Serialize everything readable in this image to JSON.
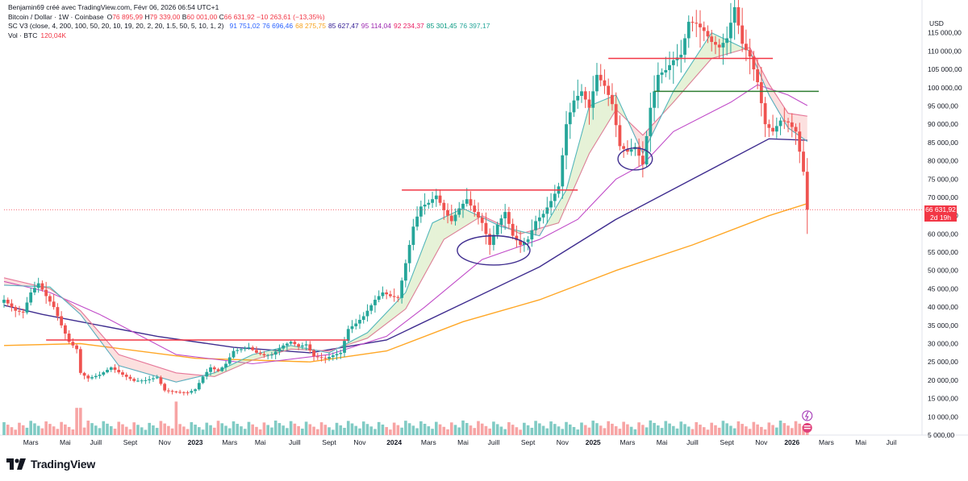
{
  "header": {
    "author_line": "Benjamin69 créé avec TradingView.com, Févr 06, 2026 06:54 UTC+1",
    "symbol_line": "Bitcoin / Dollar · 1W · Coinbase",
    "ohlc": {
      "open_label": "O",
      "open": "76 895,99",
      "high_label": "H",
      "high": "79 339,00",
      "low_label": "B",
      "low": "60 001,00",
      "close_label": "C",
      "close": "66 631,92",
      "change": "−10 263,61 (−13,35%)"
    },
    "indicator_line": "SC V3 (close, 4, 200, 100, 50, 20, 10, 19, 20, 2, 20, 1.5, 50, 5, 10, 1, 2)",
    "indicator_values": [
      {
        "value": "91 751,02",
        "color": "#2962ff"
      },
      {
        "value": "76 696,46",
        "color": "#2962ff"
      },
      {
        "value": "68 275,75",
        "color": "#f7a21b"
      },
      {
        "value": "85 627,47",
        "color": "#311b92"
      },
      {
        "value": "95 114,04",
        "color": "#9c27b0"
      },
      {
        "value": "92 234,37",
        "color": "#e91e63"
      },
      {
        "value": "85 301,45",
        "color": "#089981"
      },
      {
        "value": "76 397,17",
        "color": "#26a69a"
      }
    ],
    "volume_line": "Vol · BTC",
    "volume_value": "120,04K"
  },
  "currency": "USD",
  "price_tag": {
    "price": "66 631,92",
    "countdown": "2d 19h"
  },
  "brand": {
    "name": "TradingView"
  },
  "colors": {
    "up": "#26a69a",
    "down": "#ef5350",
    "vol_up": "#80cbc4",
    "vol_down": "#f7a4a4",
    "ma200": "#ffa726",
    "ma100": "#3f2d8f",
    "ma50": "#c04ac8",
    "ma20": "#e57aa0",
    "ma10": "#4db6c8",
    "resistance": "#f23645",
    "support_green": "#2e7d32",
    "circle": "#3f2d8f"
  },
  "chart_data": {
    "type": "candlestick",
    "title": "Bitcoin / Dollar · 1W · Coinbase",
    "ylabel": "USD",
    "ylim": [
      5000,
      120000
    ],
    "y_ticks": [
      {
        "value": 115000,
        "label": "115 000,00"
      },
      {
        "value": 110000,
        "label": "110 000,00"
      },
      {
        "value": 105000,
        "label": "105 000,00"
      },
      {
        "value": 100000,
        "label": "100 000,00"
      },
      {
        "value": 95000,
        "label": "95 000,00"
      },
      {
        "value": 90000,
        "label": "90 000,00"
      },
      {
        "value": 85000,
        "label": "85 000,00"
      },
      {
        "value": 80000,
        "label": "80 000,00"
      },
      {
        "value": 75000,
        "label": "75 000,00"
      },
      {
        "value": 70000,
        "label": "70 000,00"
      },
      {
        "value": 65000,
        "label": "65 000,00"
      },
      {
        "value": 60000,
        "label": "60 000,00"
      },
      {
        "value": 55000,
        "label": "55 000,00"
      },
      {
        "value": 50000,
        "label": "50 000,00"
      },
      {
        "value": 45000,
        "label": "45 000,00"
      },
      {
        "value": 40000,
        "label": "40 000,00"
      },
      {
        "value": 35000,
        "label": "35 000,00"
      },
      {
        "value": 30000,
        "label": "30 000,00"
      },
      {
        "value": 25000,
        "label": "25 000,00"
      },
      {
        "value": 20000,
        "label": "20 000,00"
      },
      {
        "value": 15000,
        "label": "15 000,00"
      },
      {
        "value": 10000,
        "label": "10 000,00"
      },
      {
        "value": 5000,
        "label": "5 000,00"
      }
    ],
    "x_range_weeks": [
      0,
      240
    ],
    "x_ticks": [
      {
        "week": 7,
        "label": "Mars",
        "bold": false
      },
      {
        "week": 16,
        "label": "Mai",
        "bold": false
      },
      {
        "week": 24,
        "label": "Juill",
        "bold": false
      },
      {
        "week": 33,
        "label": "Sept",
        "bold": false
      },
      {
        "week": 42,
        "label": "Nov",
        "bold": false
      },
      {
        "week": 50,
        "label": "2023",
        "bold": true
      },
      {
        "week": 59,
        "label": "Mars",
        "bold": false
      },
      {
        "week": 67,
        "label": "Mai",
        "bold": false
      },
      {
        "week": 76,
        "label": "Juill",
        "bold": false
      },
      {
        "week": 85,
        "label": "Sept",
        "bold": false
      },
      {
        "week": 93,
        "label": "Nov",
        "bold": false
      },
      {
        "week": 102,
        "label": "2024",
        "bold": true
      },
      {
        "week": 111,
        "label": "Mars",
        "bold": false
      },
      {
        "week": 120,
        "label": "Mai",
        "bold": false
      },
      {
        "week": 128,
        "label": "Juill",
        "bold": false
      },
      {
        "week": 137,
        "label": "Sept",
        "bold": false
      },
      {
        "week": 146,
        "label": "Nov",
        "bold": false
      },
      {
        "week": 154,
        "label": "2025",
        "bold": true
      },
      {
        "week": 163,
        "label": "Mars",
        "bold": false
      },
      {
        "week": 172,
        "label": "Mai",
        "bold": false
      },
      {
        "week": 180,
        "label": "Juill",
        "bold": false
      },
      {
        "week": 189,
        "label": "Sept",
        "bold": false
      },
      {
        "week": 198,
        "label": "Nov",
        "bold": false
      },
      {
        "week": 206,
        "label": "2026",
        "bold": true
      },
      {
        "week": 215,
        "label": "Mars",
        "bold": false
      },
      {
        "week": 224,
        "label": "Mai",
        "bold": false
      },
      {
        "week": 232,
        "label": "Juil",
        "bold": false
      }
    ],
    "close_path": [
      [
        0,
        42000
      ],
      [
        3,
        39000
      ],
      [
        5,
        38500
      ],
      [
        7,
        44000
      ],
      [
        9,
        46500
      ],
      [
        11,
        43000
      ],
      [
        13,
        40000
      ],
      [
        15,
        35000
      ],
      [
        17,
        30500
      ],
      [
        19,
        28500
      ],
      [
        20,
        22000
      ],
      [
        22,
        20500
      ],
      [
        25,
        21500
      ],
      [
        28,
        23500
      ],
      [
        31,
        21500
      ],
      [
        34,
        19800
      ],
      [
        37,
        20000
      ],
      [
        40,
        20800
      ],
      [
        42,
        17200
      ],
      [
        45,
        16800
      ],
      [
        48,
        16600
      ],
      [
        50,
        17500
      ],
      [
        52,
        21000
      ],
      [
        54,
        23500
      ],
      [
        56,
        22500
      ],
      [
        58,
        24500
      ],
      [
        60,
        28000
      ],
      [
        62,
        28500
      ],
      [
        64,
        29000
      ],
      [
        66,
        27500
      ],
      [
        68,
        26800
      ],
      [
        70,
        27000
      ],
      [
        73,
        29500
      ],
      [
        75,
        30500
      ],
      [
        77,
        29200
      ],
      [
        79,
        29800
      ],
      [
        81,
        26500
      ],
      [
        84,
        25900
      ],
      [
        86,
        26800
      ],
      [
        88,
        27500
      ],
      [
        90,
        34000
      ],
      [
        92,
        35500
      ],
      [
        94,
        37500
      ],
      [
        97,
        42000
      ],
      [
        99,
        44000
      ],
      [
        101,
        43000
      ],
      [
        103,
        42500
      ],
      [
        105,
        52000
      ],
      [
        107,
        62000
      ],
      [
        109,
        67500
      ],
      [
        111,
        68500
      ],
      [
        113,
        70500
      ],
      [
        115,
        66500
      ],
      [
        117,
        63500
      ],
      [
        119,
        67000
      ],
      [
        121,
        69500
      ],
      [
        123,
        66000
      ],
      [
        125,
        63000
      ],
      [
        127,
        57000
      ],
      [
        129,
        62500
      ],
      [
        131,
        66000
      ],
      [
        133,
        59500
      ],
      [
        135,
        57000
      ],
      [
        137,
        58500
      ],
      [
        139,
        63500
      ],
      [
        141,
        65500
      ],
      [
        143,
        69000
      ],
      [
        145,
        73000
      ],
      [
        147,
        90000
      ],
      [
        149,
        96500
      ],
      [
        151,
        99000
      ],
      [
        153,
        94500
      ],
      [
        155,
        103500
      ],
      [
        157,
        100500
      ],
      [
        159,
        95500
      ],
      [
        161,
        84000
      ],
      [
        163,
        82500
      ],
      [
        165,
        83800
      ],
      [
        167,
        79000
      ],
      [
        169,
        94500
      ],
      [
        171,
        103500
      ],
      [
        173,
        104800
      ],
      [
        175,
        107500
      ],
      [
        177,
        109000
      ],
      [
        179,
        118000
      ],
      [
        181,
        117500
      ],
      [
        183,
        115500
      ],
      [
        185,
        112500
      ],
      [
        187,
        111000
      ],
      [
        189,
        113500
      ],
      [
        191,
        122000
      ],
      [
        193,
        112000
      ],
      [
        195,
        108500
      ],
      [
        197,
        101500
      ],
      [
        199,
        90000
      ],
      [
        201,
        88000
      ],
      [
        203,
        91000
      ],
      [
        205,
        90500
      ],
      [
        207,
        88000
      ],
      [
        209,
        77000
      ],
      [
        210,
        66632
      ]
    ],
    "volume_ylim": [
      0,
      20000
    ],
    "volume_last": 120040,
    "moving_averages": [
      {
        "name": "MA200",
        "color": "#ffa726",
        "points": [
          [
            0,
            29500
          ],
          [
            20,
            30000
          ],
          [
            50,
            26000
          ],
          [
            80,
            25000
          ],
          [
            100,
            28000
          ],
          [
            120,
            36000
          ],
          [
            140,
            42000
          ],
          [
            160,
            50000
          ],
          [
            180,
            57000
          ],
          [
            200,
            65000
          ],
          [
            210,
            68300
          ]
        ]
      },
      {
        "name": "MA100",
        "color": "#3f2d8f",
        "points": [
          [
            0,
            40500
          ],
          [
            10,
            38000
          ],
          [
            20,
            36000
          ],
          [
            40,
            32000
          ],
          [
            60,
            29000
          ],
          [
            80,
            27500
          ],
          [
            100,
            31000
          ],
          [
            120,
            41000
          ],
          [
            140,
            51000
          ],
          [
            160,
            64000
          ],
          [
            180,
            75000
          ],
          [
            200,
            86000
          ],
          [
            210,
            85600
          ]
        ]
      },
      {
        "name": "MA50",
        "color": "#c04ac8",
        "points": [
          [
            0,
            47000
          ],
          [
            12,
            44000
          ],
          [
            25,
            38000
          ],
          [
            45,
            27000
          ],
          [
            65,
            24500
          ],
          [
            85,
            27000
          ],
          [
            100,
            32000
          ],
          [
            110,
            40000
          ],
          [
            125,
            53000
          ],
          [
            140,
            58500
          ],
          [
            150,
            64000
          ],
          [
            160,
            75000
          ],
          [
            167,
            79000
          ],
          [
            175,
            88000
          ],
          [
            190,
            96000
          ],
          [
            197,
            100800
          ],
          [
            205,
            98000
          ],
          [
            210,
            95100
          ]
        ]
      },
      {
        "name": "MA20",
        "color": "#e57aa0",
        "points": [
          [
            0,
            48000
          ],
          [
            12,
            45000
          ],
          [
            20,
            39000
          ],
          [
            30,
            27000
          ],
          [
            45,
            22000
          ],
          [
            55,
            21000
          ],
          [
            65,
            25500
          ],
          [
            75,
            28500
          ],
          [
            85,
            28000
          ],
          [
            95,
            31500
          ],
          [
            105,
            39500
          ],
          [
            115,
            58500
          ],
          [
            125,
            65000
          ],
          [
            135,
            60000
          ],
          [
            145,
            63000
          ],
          [
            153,
            82000
          ],
          [
            160,
            94000
          ],
          [
            167,
            87000
          ],
          [
            175,
            96000
          ],
          [
            185,
            108000
          ],
          [
            195,
            111000
          ],
          [
            200,
            101000
          ],
          [
            205,
            93000
          ],
          [
            210,
            92200
          ]
        ]
      },
      {
        "name": "MA10",
        "color": "#4db6c8",
        "points": [
          [
            0,
            46000
          ],
          [
            12,
            45500
          ],
          [
            20,
            38000
          ],
          [
            30,
            24000
          ],
          [
            45,
            19500
          ],
          [
            55,
            22000
          ],
          [
            65,
            27000
          ],
          [
            75,
            29500
          ],
          [
            85,
            27500
          ],
          [
            95,
            33000
          ],
          [
            105,
            44000
          ],
          [
            112,
            63000
          ],
          [
            120,
            67000
          ],
          [
            130,
            62000
          ],
          [
            140,
            59500
          ],
          [
            147,
            72000
          ],
          [
            153,
            95000
          ],
          [
            160,
            98000
          ],
          [
            167,
            82000
          ],
          [
            175,
            99000
          ],
          [
            185,
            115000
          ],
          [
            195,
            110000
          ],
          [
            200,
            98000
          ],
          [
            205,
            89000
          ],
          [
            210,
            85300
          ]
        ]
      }
    ],
    "annotations": [
      {
        "type": "hline",
        "price": 31000,
        "from_week": 11,
        "to_week": 90,
        "color": "#f23645"
      },
      {
        "type": "hline",
        "price": 72000,
        "from_week": 104,
        "to_week": 150,
        "color": "#f23645"
      },
      {
        "type": "hline",
        "price": 108000,
        "from_week": 158,
        "to_week": 201,
        "color": "#f23645"
      },
      {
        "type": "hline",
        "price": 99000,
        "from_week": 170,
        "to_week": 213,
        "color": "#2e7d32"
      },
      {
        "type": "ellipse",
        "center_week": 128,
        "center_price": 55500,
        "week_radius": 9.5,
        "price_radius": 4000,
        "color": "#3f2d8f"
      },
      {
        "type": "ellipse",
        "center_week": 165,
        "center_price": 80500,
        "week_radius": 4.5,
        "price_radius": 3000,
        "color": "#3f2d8f"
      }
    ],
    "last_price": 66631.92
  }
}
